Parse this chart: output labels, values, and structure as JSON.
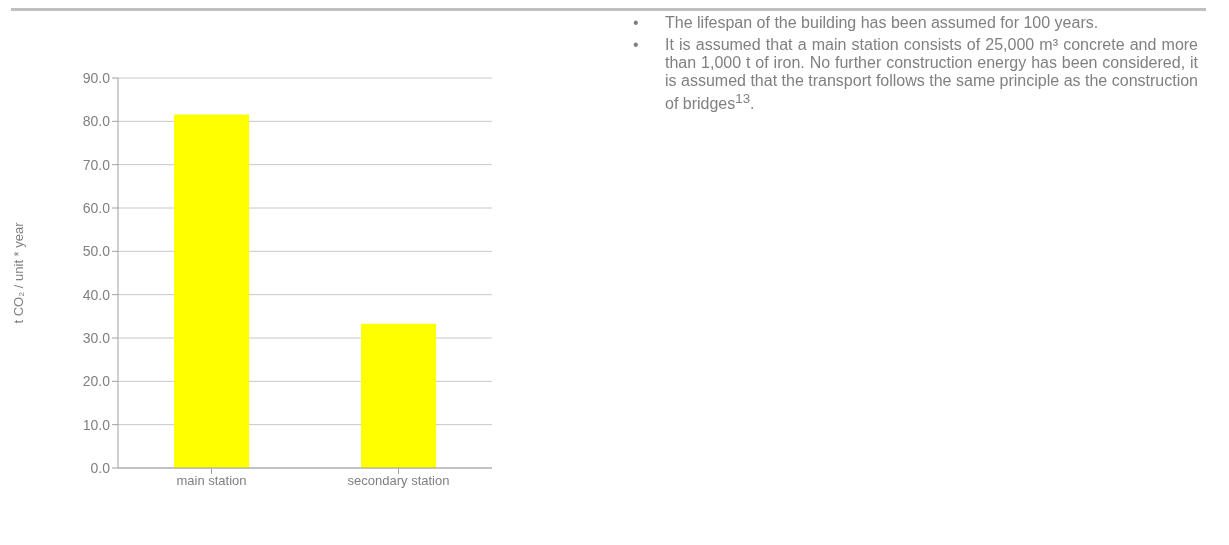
{
  "chart_data": {
    "type": "bar",
    "categories": [
      "main station",
      "secondary station"
    ],
    "values": [
      81.6,
      33.3
    ],
    "color": "#ffff00",
    "ylabel": "t CO₂ / unit * year",
    "ylim": [
      0,
      90
    ],
    "yticks": [
      {
        "value": 0,
        "label": "0.0"
      },
      {
        "value": 10,
        "label": "10.0"
      },
      {
        "value": 20,
        "label": "20.0"
      },
      {
        "value": 30,
        "label": "30.0"
      },
      {
        "value": 40,
        "label": "40.0"
      },
      {
        "value": 50,
        "label": "50.0"
      },
      {
        "value": 60,
        "label": "60.0"
      },
      {
        "value": 70,
        "label": "70.0"
      },
      {
        "value": 80,
        "label": "80.0"
      },
      {
        "value": 90,
        "label": "90.0"
      }
    ],
    "grid": "y",
    "annotations": [
      "• The lifespan of the building has been assumed for 100 years.",
      "• It is assumed that a main station consists of 25,000 m³ concrete and more than 1,000 t of iron. No further construction energy has been considered, it is assumed that the transport follows the same principle as the construction of bridges$^{13}$."
    ]
  }
}
